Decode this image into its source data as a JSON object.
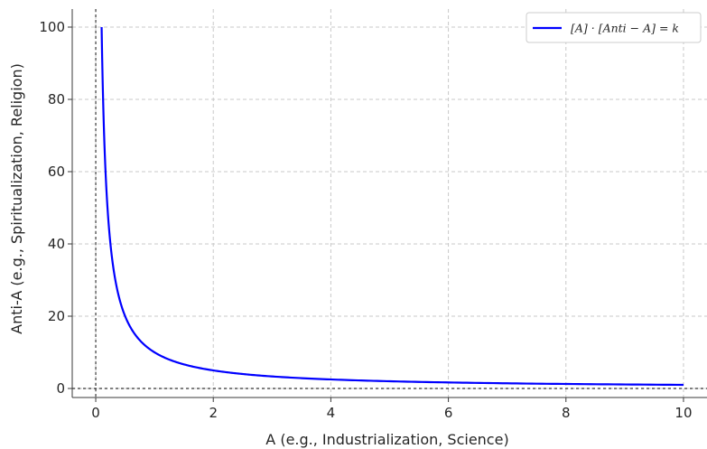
{
  "chart_data": {
    "type": "line",
    "title": "",
    "xlabel": "A (e.g., Industrialization, Science)",
    "ylabel": "Anti-A (e.g., Spiritualization, Religion)",
    "xlim": [
      -0.4,
      10.4
    ],
    "ylim": [
      -2.5,
      105
    ],
    "x_ticks": [
      0,
      2,
      4,
      6,
      8,
      10
    ],
    "y_ticks": [
      0,
      20,
      40,
      60,
      80,
      100
    ],
    "x_tick_labels": [
      "0",
      "2",
      "4",
      "6",
      "8",
      "10"
    ],
    "y_tick_labels": [
      "0",
      "20",
      "40",
      "60",
      "80",
      "100"
    ],
    "grid": true,
    "zero_lines": true,
    "legend_position": "top-right",
    "series": [
      {
        "name": "[A] · [Anti − A] = k",
        "color": "#0000ff",
        "equation": "Anti-A = 10 / A",
        "k": 10,
        "x_range": [
          0.1,
          10
        ],
        "x": [
          0.1,
          0.2,
          0.3,
          0.4,
          0.5,
          0.6,
          0.8,
          1,
          1.5,
          2,
          2.5,
          3,
          4,
          5,
          6,
          7,
          8,
          9,
          10
        ],
        "y": [
          100,
          50,
          33.3,
          25,
          20,
          16.7,
          12.5,
          10,
          6.67,
          5,
          4,
          3.33,
          2.5,
          2,
          1.67,
          1.43,
          1.25,
          1.11,
          1
        ]
      }
    ]
  }
}
